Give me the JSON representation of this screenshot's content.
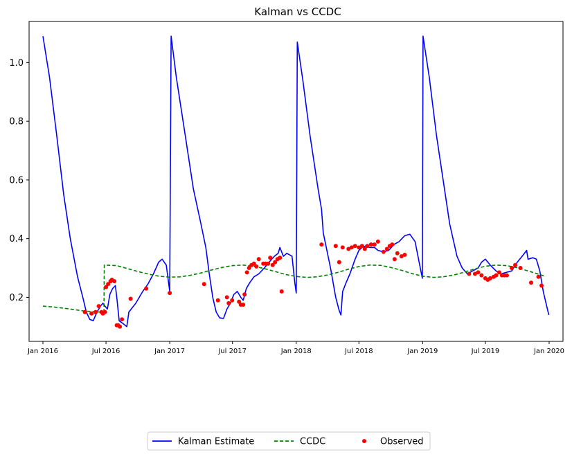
{
  "chart_data": {
    "type": "line",
    "title": "Kalman vs CCDC",
    "xlabel": "",
    "ylabel": "",
    "xlim": [
      "2015-11-22",
      "2020-02-10"
    ],
    "ylim": [
      0.05,
      1.14
    ],
    "x_ticks": [
      {
        "date": "2016-01-01",
        "label": "Jan 2016"
      },
      {
        "date": "2016-07-01",
        "label": "Jul 2016"
      },
      {
        "date": "2017-01-01",
        "label": "Jan 2017"
      },
      {
        "date": "2017-07-01",
        "label": "Jul 2017"
      },
      {
        "date": "2018-01-01",
        "label": "Jan 2018"
      },
      {
        "date": "2018-07-01",
        "label": "Jul 2018"
      },
      {
        "date": "2019-01-01",
        "label": "Jan 2019"
      },
      {
        "date": "2019-07-01",
        "label": "Jul 2019"
      },
      {
        "date": "2020-01-01",
        "label": "Jan 2020"
      }
    ],
    "y_ticks": [
      {
        "value": 0.2,
        "label": "0.2"
      },
      {
        "value": 0.4,
        "label": "0.4"
      },
      {
        "value": 0.6,
        "label": "0.6"
      },
      {
        "value": 0.8,
        "label": "0.8"
      },
      {
        "value": 1.0,
        "label": "1.0"
      }
    ],
    "grid": false,
    "legend_position": "bottom-center",
    "series": [
      {
        "name": "Kalman Estimate",
        "kind": "line",
        "style": "solid",
        "color": "#0000ff",
        "points": [
          [
            "2016-01-01",
            1.09
          ],
          [
            "2016-01-20",
            0.95
          ],
          [
            "2016-02-10",
            0.75
          ],
          [
            "2016-03-01",
            0.55
          ],
          [
            "2016-03-20",
            0.4
          ],
          [
            "2016-04-10",
            0.27
          ],
          [
            "2016-04-25",
            0.2
          ],
          [
            "2016-05-05",
            0.15
          ],
          [
            "2016-05-15",
            0.125
          ],
          [
            "2016-05-25",
            0.12
          ],
          [
            "2016-06-05",
            0.15
          ],
          [
            "2016-06-15",
            0.17
          ],
          [
            "2016-06-22",
            0.18
          ],
          [
            "2016-06-28",
            0.17
          ],
          [
            "2016-07-05",
            0.16
          ],
          [
            "2016-07-12",
            0.21
          ],
          [
            "2016-07-20",
            0.23
          ],
          [
            "2016-07-28",
            0.24
          ],
          [
            "2016-08-02",
            0.19
          ],
          [
            "2016-08-08",
            0.12
          ],
          [
            "2016-08-20",
            0.11
          ],
          [
            "2016-08-30",
            0.1
          ],
          [
            "2016-09-05",
            0.15
          ],
          [
            "2016-09-25",
            0.18
          ],
          [
            "2016-10-15",
            0.22
          ],
          [
            "2016-10-30",
            0.245
          ],
          [
            "2016-11-15",
            0.28
          ],
          [
            "2016-11-30",
            0.32
          ],
          [
            "2016-12-10",
            0.33
          ],
          [
            "2016-12-22",
            0.31
          ],
          [
            "2017-01-01",
            0.22
          ],
          [
            "2017-01-05",
            1.09
          ],
          [
            "2017-01-20",
            0.95
          ],
          [
            "2017-02-15",
            0.75
          ],
          [
            "2017-03-10",
            0.57
          ],
          [
            "2017-04-01",
            0.45
          ],
          [
            "2017-04-15",
            0.37
          ],
          [
            "2017-04-25",
            0.28
          ],
          [
            "2017-05-05",
            0.2
          ],
          [
            "2017-05-15",
            0.15
          ],
          [
            "2017-05-25",
            0.13
          ],
          [
            "2017-06-05",
            0.128
          ],
          [
            "2017-06-15",
            0.16
          ],
          [
            "2017-06-25",
            0.18
          ],
          [
            "2017-07-05",
            0.21
          ],
          [
            "2017-07-15",
            0.22
          ],
          [
            "2017-07-25",
            0.2
          ],
          [
            "2017-08-01",
            0.19
          ],
          [
            "2017-08-10",
            0.23
          ],
          [
            "2017-08-20",
            0.25
          ],
          [
            "2017-09-01",
            0.27
          ],
          [
            "2017-09-15",
            0.28
          ],
          [
            "2017-10-01",
            0.3
          ],
          [
            "2017-10-15",
            0.32
          ],
          [
            "2017-10-30",
            0.34
          ],
          [
            "2017-11-10",
            0.35
          ],
          [
            "2017-11-15",
            0.37
          ],
          [
            "2017-11-25",
            0.34
          ],
          [
            "2017-12-05",
            0.35
          ],
          [
            "2017-12-20",
            0.34
          ],
          [
            "2017-12-28",
            0.25
          ],
          [
            "2018-01-01",
            0.215
          ],
          [
            "2018-01-04",
            1.07
          ],
          [
            "2018-01-20",
            0.94
          ],
          [
            "2018-02-10",
            0.75
          ],
          [
            "2018-03-05",
            0.57
          ],
          [
            "2018-03-15",
            0.5
          ],
          [
            "2018-03-20",
            0.42
          ],
          [
            "2018-04-10",
            0.3
          ],
          [
            "2018-04-25",
            0.2
          ],
          [
            "2018-05-05",
            0.155
          ],
          [
            "2018-05-10",
            0.14
          ],
          [
            "2018-05-15",
            0.22
          ],
          [
            "2018-05-25",
            0.25
          ],
          [
            "2018-06-05",
            0.28
          ],
          [
            "2018-06-20",
            0.33
          ],
          [
            "2018-07-01",
            0.36
          ],
          [
            "2018-07-10",
            0.37
          ],
          [
            "2018-07-20",
            0.375
          ],
          [
            "2018-08-01",
            0.37
          ],
          [
            "2018-08-15",
            0.37
          ],
          [
            "2018-08-25",
            0.36
          ],
          [
            "2018-09-10",
            0.355
          ],
          [
            "2018-09-25",
            0.36
          ],
          [
            "2018-10-10",
            0.38
          ],
          [
            "2018-10-25",
            0.39
          ],
          [
            "2018-11-10",
            0.41
          ],
          [
            "2018-11-25",
            0.415
          ],
          [
            "2018-12-10",
            0.39
          ],
          [
            "2018-12-25",
            0.3
          ],
          [
            "2018-12-31",
            0.265
          ],
          [
            "2019-01-02",
            1.09
          ],
          [
            "2019-01-20",
            0.95
          ],
          [
            "2019-02-10",
            0.75
          ],
          [
            "2019-03-01",
            0.6
          ],
          [
            "2019-03-20",
            0.45
          ],
          [
            "2019-04-10",
            0.34
          ],
          [
            "2019-04-25",
            0.3
          ],
          [
            "2019-05-10",
            0.28
          ],
          [
            "2019-05-25",
            0.29
          ],
          [
            "2019-06-10",
            0.3
          ],
          [
            "2019-06-20",
            0.32
          ],
          [
            "2019-07-01",
            0.33
          ],
          [
            "2019-07-15",
            0.31
          ],
          [
            "2019-08-01",
            0.29
          ],
          [
            "2019-08-15",
            0.28
          ],
          [
            "2019-08-30",
            0.285
          ],
          [
            "2019-09-15",
            0.29
          ],
          [
            "2019-10-01",
            0.32
          ],
          [
            "2019-10-15",
            0.34
          ],
          [
            "2019-10-28",
            0.36
          ],
          [
            "2019-11-01",
            0.33
          ],
          [
            "2019-11-15",
            0.335
          ],
          [
            "2019-11-25",
            0.33
          ],
          [
            "2019-12-05",
            0.29
          ],
          [
            "2019-12-15",
            0.22
          ],
          [
            "2019-12-31",
            0.14
          ]
        ]
      },
      {
        "name": "CCDC",
        "kind": "line",
        "style": "dashed",
        "color": "#008000",
        "points": [
          [
            "2016-01-01",
            0.17
          ],
          [
            "2016-02-01",
            0.167
          ],
          [
            "2016-03-01",
            0.163
          ],
          [
            "2016-04-01",
            0.158
          ],
          [
            "2016-05-01",
            0.153
          ],
          [
            "2016-06-10",
            0.15
          ],
          [
            "2016-06-25",
            0.15
          ],
          [
            "2016-06-26",
            0.31
          ],
          [
            "2016-08-01",
            0.308
          ],
          [
            "2016-09-01",
            0.298
          ],
          [
            "2016-10-01",
            0.288
          ],
          [
            "2016-11-01",
            0.279
          ],
          [
            "2016-12-01",
            0.272
          ],
          [
            "2017-01-01",
            0.269
          ],
          [
            "2017-02-01",
            0.27
          ],
          [
            "2017-03-01",
            0.275
          ],
          [
            "2017-04-01",
            0.283
          ],
          [
            "2017-05-01",
            0.293
          ],
          [
            "2017-06-01",
            0.302
          ],
          [
            "2017-07-01",
            0.308
          ],
          [
            "2017-08-01",
            0.31
          ],
          [
            "2017-09-01",
            0.306
          ],
          [
            "2017-10-01",
            0.298
          ],
          [
            "2017-11-01",
            0.288
          ],
          [
            "2017-12-01",
            0.278
          ],
          [
            "2018-01-01",
            0.271
          ],
          [
            "2018-02-01",
            0.268
          ],
          [
            "2018-03-01",
            0.27
          ],
          [
            "2018-04-01",
            0.276
          ],
          [
            "2018-05-01",
            0.285
          ],
          [
            "2018-06-01",
            0.296
          ],
          [
            "2018-07-01",
            0.305
          ],
          [
            "2018-08-01",
            0.31
          ],
          [
            "2018-09-01",
            0.309
          ],
          [
            "2018-10-01",
            0.302
          ],
          [
            "2018-11-01",
            0.292
          ],
          [
            "2018-12-01",
            0.281
          ],
          [
            "2019-01-01",
            0.272
          ],
          [
            "2019-02-01",
            0.268
          ],
          [
            "2019-03-01",
            0.27
          ],
          [
            "2019-04-01",
            0.276
          ],
          [
            "2019-05-01",
            0.286
          ],
          [
            "2019-06-01",
            0.297
          ],
          [
            "2019-07-01",
            0.306
          ],
          [
            "2019-08-01",
            0.31
          ],
          [
            "2019-09-01",
            0.308
          ],
          [
            "2019-10-01",
            0.301
          ],
          [
            "2019-11-01",
            0.29
          ],
          [
            "2019-12-01",
            0.279
          ],
          [
            "2019-12-20",
            0.272
          ]
        ]
      },
      {
        "name": "Observed",
        "kind": "scatter",
        "color": "#ff0000",
        "points": [
          [
            "2016-05-01",
            0.15
          ],
          [
            "2016-05-20",
            0.145
          ],
          [
            "2016-06-01",
            0.15
          ],
          [
            "2016-06-10",
            0.17
          ],
          [
            "2016-06-18",
            0.15
          ],
          [
            "2016-06-22",
            0.145
          ],
          [
            "2016-06-28",
            0.15
          ],
          [
            "2016-07-01",
            0.235
          ],
          [
            "2016-07-07",
            0.245
          ],
          [
            "2016-07-14",
            0.255
          ],
          [
            "2016-07-18",
            0.26
          ],
          [
            "2016-07-25",
            0.255
          ],
          [
            "2016-08-01",
            0.105
          ],
          [
            "2016-08-05",
            0.105
          ],
          [
            "2016-08-10",
            0.1
          ],
          [
            "2016-08-16",
            0.125
          ],
          [
            "2016-09-10",
            0.195
          ],
          [
            "2016-10-25",
            0.23
          ],
          [
            "2017-01-01",
            0.215
          ],
          [
            "2017-04-10",
            0.245
          ],
          [
            "2017-05-20",
            0.19
          ],
          [
            "2017-06-15",
            0.2
          ],
          [
            "2017-06-20",
            0.18
          ],
          [
            "2017-06-30",
            0.19
          ],
          [
            "2017-07-20",
            0.185
          ],
          [
            "2017-07-25",
            0.175
          ],
          [
            "2017-08-01",
            0.175
          ],
          [
            "2017-08-05",
            0.21
          ],
          [
            "2017-08-12",
            0.285
          ],
          [
            "2017-08-18",
            0.3
          ],
          [
            "2017-08-25",
            0.31
          ],
          [
            "2017-09-01",
            0.315
          ],
          [
            "2017-09-08",
            0.305
          ],
          [
            "2017-09-15",
            0.33
          ],
          [
            "2017-09-28",
            0.315
          ],
          [
            "2017-10-05",
            0.315
          ],
          [
            "2017-10-12",
            0.315
          ],
          [
            "2017-10-18",
            0.335
          ],
          [
            "2017-10-25",
            0.31
          ],
          [
            "2017-11-01",
            0.32
          ],
          [
            "2017-11-08",
            0.33
          ],
          [
            "2017-11-15",
            0.335
          ],
          [
            "2017-11-20",
            0.22
          ],
          [
            "2018-03-15",
            0.38
          ],
          [
            "2018-04-25",
            0.375
          ],
          [
            "2018-05-05",
            0.32
          ],
          [
            "2018-05-15",
            0.37
          ],
          [
            "2018-06-01",
            0.365
          ],
          [
            "2018-06-10",
            0.37
          ],
          [
            "2018-06-20",
            0.375
          ],
          [
            "2018-07-01",
            0.37
          ],
          [
            "2018-07-10",
            0.375
          ],
          [
            "2018-07-18",
            0.365
          ],
          [
            "2018-07-25",
            0.375
          ],
          [
            "2018-08-05",
            0.38
          ],
          [
            "2018-08-15",
            0.38
          ],
          [
            "2018-08-25",
            0.39
          ],
          [
            "2018-09-10",
            0.355
          ],
          [
            "2018-09-20",
            0.365
          ],
          [
            "2018-09-28",
            0.375
          ],
          [
            "2018-10-05",
            0.38
          ],
          [
            "2018-10-12",
            0.33
          ],
          [
            "2018-10-20",
            0.35
          ],
          [
            "2018-11-01",
            0.34
          ],
          [
            "2018-11-10",
            0.345
          ],
          [
            "2019-05-15",
            0.28
          ],
          [
            "2019-06-01",
            0.28
          ],
          [
            "2019-06-10",
            0.285
          ],
          [
            "2019-06-20",
            0.275
          ],
          [
            "2019-07-01",
            0.265
          ],
          [
            "2019-07-08",
            0.26
          ],
          [
            "2019-07-15",
            0.265
          ],
          [
            "2019-07-25",
            0.27
          ],
          [
            "2019-08-01",
            0.275
          ],
          [
            "2019-08-10",
            0.285
          ],
          [
            "2019-08-18",
            0.275
          ],
          [
            "2019-08-25",
            0.275
          ],
          [
            "2019-09-01",
            0.275
          ],
          [
            "2019-09-15",
            0.3
          ],
          [
            "2019-09-25",
            0.31
          ],
          [
            "2019-10-10",
            0.3
          ],
          [
            "2019-11-10",
            0.25
          ],
          [
            "2019-12-01",
            0.27
          ],
          [
            "2019-12-10",
            0.24
          ]
        ]
      }
    ]
  }
}
